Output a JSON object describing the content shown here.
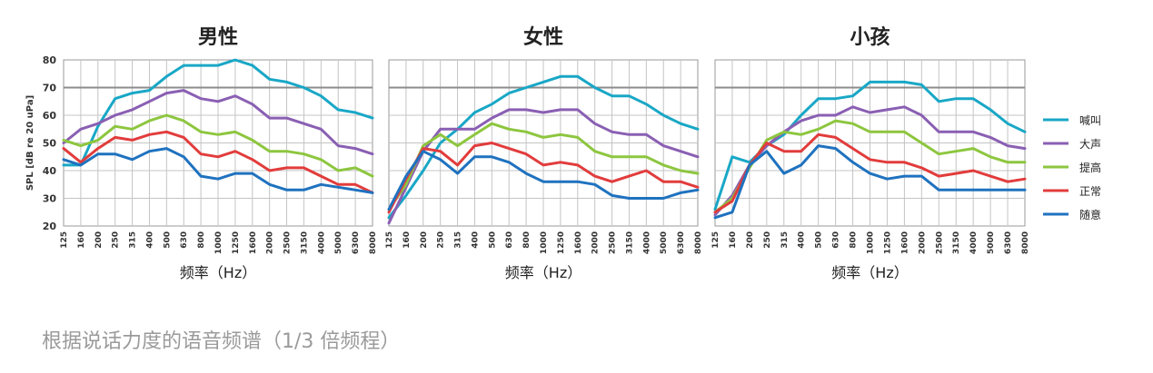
{
  "caption": "根据说话力度的语音频谱（1/3 倍频程）",
  "legend": [
    {
      "name": "喊叫",
      "color": "#19a7c6"
    },
    {
      "name": "大声",
      "color": "#8a5fb3"
    },
    {
      "name": "提高",
      "color": "#8dc63f"
    },
    {
      "name": "正常",
      "color": "#e23c3c"
    },
    {
      "name": "随意",
      "color": "#1f72bf"
    }
  ],
  "chart_data": [
    {
      "type": "line",
      "title": "男性",
      "xlabel": "频率（Hz）",
      "ylabel": "SPL [dB re 20 uPa]",
      "ylim": [
        20,
        80
      ],
      "yticks": [
        "20",
        "30",
        "40",
        "50",
        "60",
        "70",
        "80"
      ],
      "x": [
        "125",
        "160",
        "200",
        "250",
        "315",
        "400",
        "500",
        "630",
        "800",
        "1000",
        "1250",
        "1600",
        "2000",
        "2500",
        "3150",
        "4000",
        "5000",
        "6300",
        "8000"
      ],
      "grid": true,
      "series": [
        {
          "name": "喊叫",
          "values": [
            42,
            42,
            56,
            66,
            68,
            69,
            74,
            78,
            78,
            78,
            80,
            78,
            73,
            72,
            70,
            67,
            62,
            61,
            59
          ]
        },
        {
          "name": "大声",
          "values": [
            50,
            55,
            57,
            60,
            62,
            65,
            68,
            69,
            66,
            65,
            67,
            64,
            59,
            59,
            57,
            55,
            49,
            48,
            46
          ]
        },
        {
          "name": "提高",
          "values": [
            51,
            49,
            51,
            56,
            55,
            58,
            60,
            58,
            54,
            53,
            54,
            51,
            47,
            47,
            46,
            44,
            40,
            41,
            38
          ]
        },
        {
          "name": "正常",
          "values": [
            48,
            43,
            48,
            52,
            51,
            53,
            54,
            52,
            46,
            45,
            47,
            44,
            40,
            41,
            41,
            38,
            35,
            35,
            32
          ]
        },
        {
          "name": "随意",
          "values": [
            44,
            42,
            46,
            46,
            44,
            47,
            48,
            45,
            38,
            37,
            39,
            39,
            35,
            33,
            33,
            35,
            34,
            33,
            32
          ]
        }
      ]
    },
    {
      "type": "line",
      "title": "女性",
      "xlabel": "频率（Hz）",
      "ylabel": "",
      "ylim": [
        20,
        80
      ],
      "x": [
        "125",
        "160",
        "200",
        "250",
        "315",
        "400",
        "500",
        "630",
        "800",
        "1000",
        "1250",
        "1600",
        "2000",
        "2500",
        "3150",
        "4000",
        "5000",
        "6300",
        "8000"
      ],
      "grid": true,
      "series": [
        {
          "name": "喊叫",
          "values": [
            23,
            31,
            40,
            50,
            55,
            61,
            64,
            68,
            70,
            72,
            74,
            74,
            70,
            67,
            67,
            64,
            60,
            57,
            55
          ]
        },
        {
          "name": "大声",
          "values": [
            21,
            34,
            47,
            55,
            55,
            55,
            59,
            62,
            62,
            61,
            62,
            62,
            57,
            54,
            53,
            53,
            49,
            47,
            45
          ]
        },
        {
          "name": "提高",
          "values": [
            26,
            35,
            49,
            53,
            49,
            53,
            57,
            55,
            54,
            52,
            53,
            52,
            47,
            45,
            45,
            45,
            42,
            40,
            39
          ]
        },
        {
          "name": "正常",
          "values": [
            25,
            37,
            48,
            47,
            42,
            49,
            50,
            48,
            46,
            42,
            43,
            42,
            38,
            36,
            38,
            40,
            36,
            36,
            34
          ]
        },
        {
          "name": "随意",
          "values": [
            26,
            38,
            47,
            44,
            39,
            45,
            45,
            43,
            39,
            36,
            36,
            36,
            35,
            31,
            30,
            30,
            30,
            32,
            33
          ]
        }
      ]
    },
    {
      "type": "line",
      "title": "小孩",
      "xlabel": "频率（Hz）",
      "ylabel": "",
      "ylim": [
        20,
        80
      ],
      "x": [
        "125",
        "160",
        "200",
        "250",
        "315",
        "400",
        "500",
        "630",
        "800",
        "1000",
        "1250",
        "1600",
        "2000",
        "2500",
        "3150",
        "4000",
        "5000",
        "6300",
        "8000"
      ],
      "grid": true,
      "series": [
        {
          "name": "喊叫",
          "values": [
            26,
            45,
            43,
            49,
            53,
            60,
            66,
            66,
            67,
            72,
            72,
            72,
            71,
            65,
            66,
            66,
            62,
            57,
            54
          ]
        },
        {
          "name": "大声",
          "values": [
            24,
            31,
            42,
            49,
            54,
            58,
            60,
            60,
            63,
            61,
            62,
            63,
            60,
            54,
            54,
            54,
            52,
            49,
            48
          ]
        },
        {
          "name": "提高",
          "values": [
            25,
            30,
            41,
            51,
            54,
            53,
            55,
            58,
            57,
            54,
            54,
            54,
            50,
            46,
            47,
            48,
            45,
            43,
            43
          ]
        },
        {
          "name": "正常",
          "values": [
            25,
            29,
            42,
            50,
            47,
            47,
            53,
            52,
            48,
            44,
            43,
            43,
            41,
            38,
            39,
            40,
            38,
            36,
            37
          ]
        },
        {
          "name": "随意",
          "values": [
            23,
            25,
            42,
            47,
            39,
            42,
            49,
            48,
            43,
            39,
            37,
            38,
            38,
            33,
            33,
            33,
            33,
            33,
            33
          ]
        }
      ]
    }
  ]
}
